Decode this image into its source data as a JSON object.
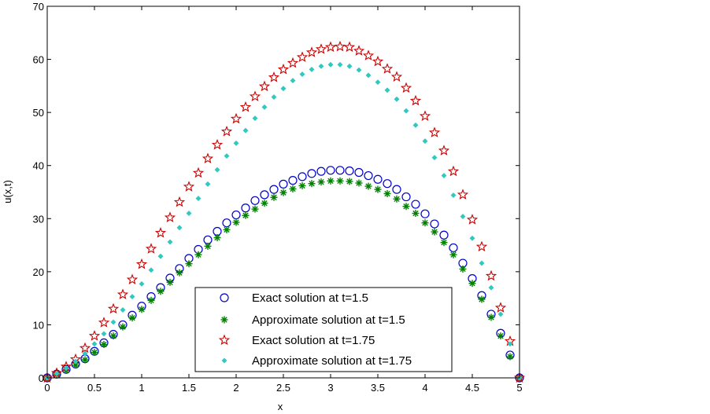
{
  "chart_data": {
    "type": "scatter",
    "title": "",
    "xlabel": "x",
    "ylabel": "u(x,t)",
    "xlim": [
      0,
      5
    ],
    "ylim": [
      0,
      70
    ],
    "xticks": [
      0,
      0.5,
      1,
      1.5,
      2,
      2.5,
      3,
      3.5,
      4,
      4.5,
      5
    ],
    "xtick_labels": [
      "0",
      "0.5",
      "1",
      "1.5",
      "2",
      "2.5",
      "3",
      "3.5",
      "4",
      "4.5",
      "5"
    ],
    "yticks": [
      0,
      10,
      20,
      30,
      40,
      50,
      60,
      70
    ],
    "ytick_labels": [
      "0",
      "10",
      "20",
      "30",
      "40",
      "50",
      "60",
      "70"
    ],
    "grid": false,
    "legend_position": "bottom-center",
    "x": [
      0,
      0.1,
      0.2,
      0.3,
      0.4,
      0.5,
      0.6,
      0.7,
      0.8,
      0.9,
      1.0,
      1.1,
      1.2,
      1.3,
      1.4,
      1.5,
      1.6,
      1.7,
      1.8,
      1.9,
      2.0,
      2.1,
      2.2,
      2.3,
      2.4,
      2.5,
      2.6,
      2.7,
      2.8,
      2.9,
      3.0,
      3.1,
      3.2,
      3.3,
      3.4,
      3.5,
      3.6,
      3.7,
      3.8,
      3.9,
      4.0,
      4.1,
      4.2,
      4.3,
      4.4,
      4.5,
      4.6,
      4.7,
      4.8,
      4.9,
      5.0
    ],
    "series": [
      {
        "name": "Exact solution at t=1.5",
        "marker": "circle",
        "color": "#0000cc",
        "values": [
          0,
          0.7,
          1.6,
          2.6,
          3.6,
          5.0,
          6.6,
          8.2,
          10.0,
          11.8,
          13.5,
          15.3,
          17.0,
          18.8,
          20.6,
          22.5,
          24.2,
          26.0,
          27.6,
          29.2,
          30.7,
          32.0,
          33.4,
          34.5,
          35.5,
          36.5,
          37.2,
          37.9,
          38.5,
          38.9,
          39.1,
          39.1,
          39.0,
          38.7,
          38.1,
          37.4,
          36.6,
          35.5,
          34.1,
          32.7,
          30.9,
          29.0,
          26.9,
          24.5,
          21.6,
          18.7,
          15.5,
          12.0,
          8.4,
          4.3,
          0
        ]
      },
      {
        "name": "Approximate solution at t=1.5",
        "marker": "asterisk",
        "color": "#008000",
        "values": [
          0,
          0.6,
          1.4,
          2.4,
          3.4,
          4.8,
          6.3,
          7.9,
          9.6,
          11.3,
          12.9,
          14.6,
          16.3,
          18.0,
          19.8,
          21.5,
          23.2,
          24.8,
          26.4,
          27.9,
          29.3,
          30.6,
          31.8,
          32.9,
          34.0,
          34.9,
          35.6,
          36.2,
          36.6,
          36.9,
          37.1,
          37.1,
          37.0,
          36.7,
          36.1,
          35.5,
          34.7,
          33.7,
          32.3,
          31.0,
          29.2,
          27.5,
          25.5,
          23.2,
          20.5,
          17.8,
          14.8,
          11.4,
          7.9,
          4.0,
          0
        ]
      },
      {
        "name": "Exact solution at t=1.75",
        "marker": "pentagram",
        "color": "#cc0000",
        "values": [
          0,
          0.9,
          2.1,
          3.5,
          5.6,
          7.9,
          10.4,
          13.0,
          15.7,
          18.5,
          21.4,
          24.3,
          27.3,
          30.2,
          33.1,
          36.0,
          38.6,
          41.3,
          43.9,
          46.4,
          48.8,
          51.0,
          53.0,
          54.9,
          56.6,
          58.1,
          59.3,
          60.4,
          61.3,
          61.9,
          62.3,
          62.4,
          62.3,
          61.6,
          60.7,
          59.6,
          58.2,
          56.7,
          54.6,
          52.2,
          49.3,
          46.2,
          42.8,
          38.9,
          34.5,
          29.8,
          24.7,
          19.2,
          13.2,
          6.9,
          0
        ]
      },
      {
        "name": "Approximate solution at t=1.75",
        "marker": "diamond",
        "color": "#30c8c0",
        "values": [
          0,
          0.8,
          1.8,
          3.1,
          4.6,
          6.4,
          8.3,
          10.5,
          12.8,
          15.3,
          17.7,
          20.3,
          22.9,
          25.6,
          28.3,
          31.0,
          33.8,
          36.5,
          39.2,
          41.8,
          44.2,
          46.6,
          48.9,
          51.0,
          52.9,
          54.5,
          56.0,
          57.2,
          58.1,
          58.7,
          59.0,
          59.0,
          58.7,
          58.0,
          57.0,
          55.7,
          54.2,
          52.5,
          50.3,
          47.6,
          44.6,
          41.5,
          38.1,
          34.4,
          30.4,
          26.3,
          21.6,
          17.0,
          12.0,
          6.4,
          0
        ]
      }
    ]
  }
}
